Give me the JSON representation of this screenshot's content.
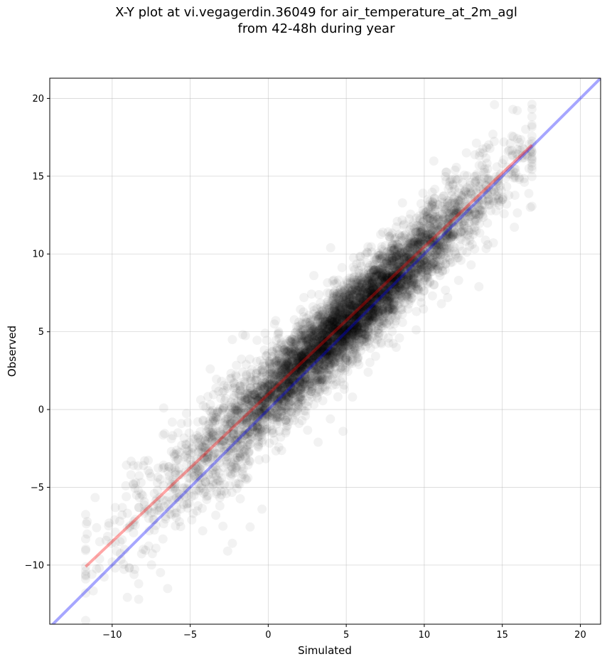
{
  "chart_data": {
    "type": "scatter",
    "title_line1": "X-Y plot at vi.vegagerdin.36049 for air_temperature_at_2m_agl",
    "title_line2": "from 42-48h during year",
    "xlabel": "Simulated",
    "ylabel": "Observed",
    "xlim": [
      -14,
      21.3
    ],
    "ylim": [
      -13.8,
      21.3
    ],
    "xticks": [
      -10,
      -5,
      0,
      5,
      10,
      15,
      20
    ],
    "yticks": [
      -10,
      -5,
      0,
      5,
      10,
      15,
      20
    ],
    "xtick_labels": [
      "−10",
      "−5",
      "0",
      "5",
      "10",
      "15",
      "20"
    ],
    "ytick_labels": [
      "−10",
      "−5",
      "0",
      "5",
      "10",
      "15",
      "20"
    ],
    "grid": true,
    "point_color": "#000000",
    "reference_line": {
      "description": "1:1 line",
      "color": "#0000ff",
      "x": [
        -14,
        21.3
      ],
      "y": [
        -14,
        21.3
      ]
    },
    "fit_line": {
      "color": "#ff0000",
      "x": [
        -11.7,
        16.9
      ],
      "y": [
        -10.1,
        17.0
      ]
    },
    "points_summary": {
      "count_estimate": 6000,
      "x_range": [
        -11.7,
        16.9
      ],
      "relation": "observed ≈ 0.94 × simulated + 0.9",
      "scatter_sd": 1.3
    },
    "points_sample": [
      [
        -11.6,
        -7.2
      ],
      [
        -11.6,
        -8.0
      ],
      [
        -11.0,
        -7.6
      ],
      [
        -10.8,
        -8.5
      ],
      [
        -10.2,
        -7.3
      ],
      [
        -10.0,
        -9.8
      ],
      [
        -9.5,
        -8.5
      ],
      [
        -9.8,
        -6.3
      ],
      [
        -9.1,
        -5.6
      ],
      [
        -9.2,
        -9.0
      ],
      [
        -8.9,
        -10.2
      ],
      [
        -8.6,
        -10.6
      ],
      [
        -8.3,
        -11.2
      ],
      [
        -8.3,
        -12.2
      ],
      [
        -8.8,
        -4.2
      ],
      [
        -8.5,
        -4.7
      ],
      [
        -8.0,
        -3.6
      ],
      [
        -7.6,
        -4.1
      ],
      [
        -7.3,
        -5.4
      ],
      [
        -6.9,
        -6.3
      ],
      [
        -6.7,
        0.1
      ],
      [
        -6.2,
        -2.7
      ],
      [
        -5.9,
        -3.3
      ],
      [
        -5.6,
        -4.2
      ],
      [
        -5.1,
        -4.4
      ],
      [
        -4.9,
        -7.1
      ],
      [
        -4.2,
        -7.8
      ],
      [
        -3.9,
        -2.0
      ],
      [
        -3.5,
        -0.6
      ],
      [
        -3.1,
        -6.2
      ],
      [
        -2.9,
        -7.5
      ],
      [
        -2.6,
        -9.1
      ],
      [
        -2.3,
        -8.6
      ],
      [
        -2.0,
        -1.8
      ],
      [
        -1.6,
        -3.8
      ],
      [
        -1.3,
        -4.4
      ],
      [
        -2.3,
        4.5
      ],
      [
        -0.4,
        -6.4
      ],
      [
        -0.2,
        4.9
      ],
      [
        0.4,
        5.5
      ],
      [
        3.2,
        -2.1
      ],
      [
        4.8,
        -1.4
      ],
      [
        5.4,
        0.8
      ],
      [
        6.4,
        2.4
      ],
      [
        7.7,
        4.6
      ],
      [
        8.2,
        4.0
      ],
      [
        8.6,
        5.6
      ],
      [
        9.5,
        6.3
      ],
      [
        11.1,
        6.8
      ],
      [
        11.5,
        7.2
      ],
      [
        12.2,
        8.3
      ],
      [
        13.0,
        9.3
      ],
      [
        13.5,
        7.9
      ],
      [
        14.5,
        19.6
      ],
      [
        14.4,
        17.7
      ],
      [
        15.1,
        17.2
      ],
      [
        15.7,
        15.3
      ],
      [
        16.1,
        14.8
      ],
      [
        16.8,
        13.0
      ],
      [
        16.3,
        16.8
      ],
      [
        12.7,
        16.5
      ],
      [
        11.4,
        14.7
      ],
      [
        9.5,
        12.3
      ],
      [
        4.0,
        10.4
      ]
    ]
  }
}
